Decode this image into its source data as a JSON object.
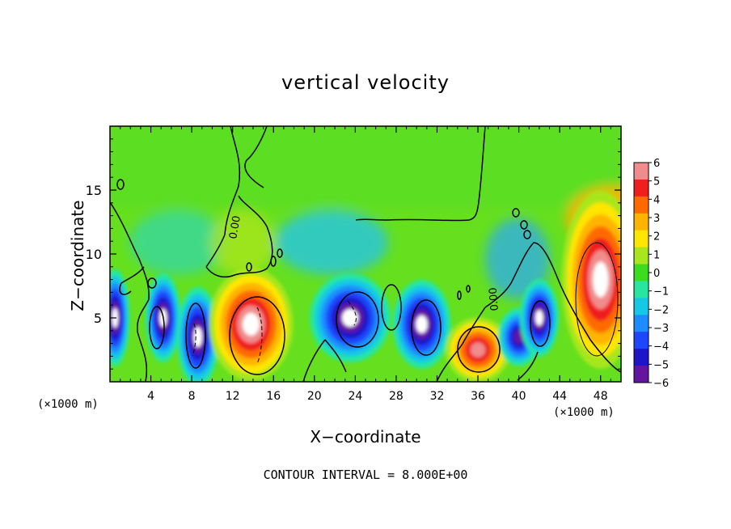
{
  "chart_data": {
    "type": "heatmap",
    "title": "vertical velocity",
    "xlabel": "X−coordinate",
    "ylabel": "Z−coordinate",
    "x_unit_label": "(×1000 m)",
    "note": "CONTOUR INTERVAL = 8.000E+00",
    "contour_label": "0.00",
    "xlim": [
      0,
      50
    ],
    "ylim": [
      0,
      20
    ],
    "x_ticks": [
      4,
      8,
      12,
      16,
      20,
      24,
      28,
      32,
      36,
      40,
      44,
      48
    ],
    "x_tick_labels": [
      "4",
      "8",
      "12",
      "16",
      "20",
      "24",
      "28",
      "32",
      "36",
      "40",
      "44",
      "48"
    ],
    "y_ticks": [
      5,
      10,
      15
    ],
    "y_tick_labels": [
      "5",
      "10",
      "15"
    ],
    "colorbar": {
      "min": -6,
      "max": 6,
      "tick_labels": [
        "6",
        "5",
        "4",
        "3",
        "2",
        "1",
        "0",
        "−1",
        "−2",
        "−3",
        "−4",
        "−5",
        "−6"
      ],
      "colors": [
        "#f08c8c",
        "#f01e1e",
        "#ff6a00",
        "#ffb400",
        "#ffe600",
        "#a8e61e",
        "#3cdc1e",
        "#28e6a0",
        "#14c8e6",
        "#1e8cff",
        "#1e46ff",
        "#1e14c8",
        "#6414a0"
      ]
    },
    "features": [
      {
        "x": 0.5,
        "z": 5.0,
        "w": -6
      },
      {
        "x": 5.2,
        "z": 5.0,
        "w": -6
      },
      {
        "x": 8.6,
        "z": 3.5,
        "w": -6
      },
      {
        "x": 13.8,
        "z": 4.5,
        "w": 6
      },
      {
        "x": 23.5,
        "z": 5.0,
        "w": -6
      },
      {
        "x": 30.5,
        "z": 4.5,
        "w": -6
      },
      {
        "x": 36.0,
        "z": 2.5,
        "w": 5
      },
      {
        "x": 40.0,
        "z": 3.5,
        "w": -5
      },
      {
        "x": 42.0,
        "z": 5.0,
        "w": -6
      },
      {
        "x": 48.0,
        "z": 8.0,
        "w": 6
      }
    ]
  }
}
